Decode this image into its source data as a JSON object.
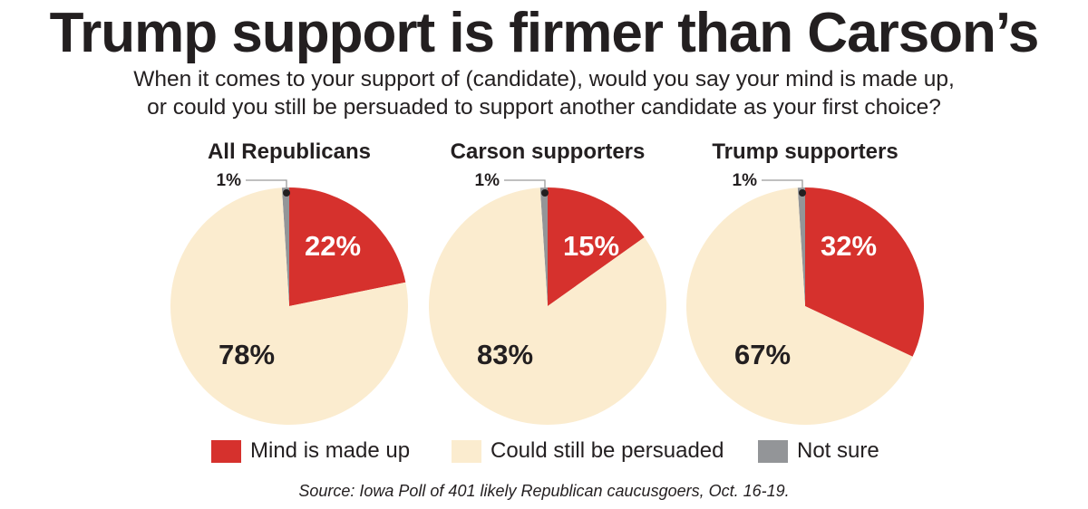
{
  "title": "Trump support is firmer than Carson’s",
  "subtitle": {
    "line1": "When it comes to your support of (candidate), would you say your mind is made up,",
    "line2": "or could you still be persuaded to support another candidate as your first choice?"
  },
  "colors": {
    "made_up": "#d6312d",
    "persuaded": "#fbeccf",
    "not_sure": "#939598",
    "label_on_red": "#ffffff",
    "label_dark": "#231f20"
  },
  "chart_data": [
    {
      "type": "pie",
      "title": "All Republicans",
      "slices": [
        {
          "label": "Not sure",
          "value": 1,
          "display": "1%"
        },
        {
          "label": "Mind is made up",
          "value": 22,
          "display": "22%"
        },
        {
          "label": "Could still be persuaded",
          "value": 78,
          "display": "78%"
        }
      ]
    },
    {
      "type": "pie",
      "title": "Carson supporters",
      "slices": [
        {
          "label": "Not sure",
          "value": 1,
          "display": "1%"
        },
        {
          "label": "Mind is made up",
          "value": 15,
          "display": "15%"
        },
        {
          "label": "Could still be persuaded",
          "value": 83,
          "display": "83%"
        }
      ]
    },
    {
      "type": "pie",
      "title": "Trump supporters",
      "slices": [
        {
          "label": "Not sure",
          "value": 1,
          "display": "1%"
        },
        {
          "label": "Mind is made up",
          "value": 32,
          "display": "32%"
        },
        {
          "label": "Could still be persuaded",
          "value": 67,
          "display": "67%"
        }
      ]
    }
  ],
  "legend": [
    {
      "label": "Mind is made up",
      "color": "#d6312d"
    },
    {
      "label": "Could still be persuaded",
      "color": "#fbeccf"
    },
    {
      "label": "Not sure",
      "color": "#939598"
    }
  ],
  "source": "Source: Iowa Poll of 401 likely Republican caucusgoers, Oct. 16-19."
}
